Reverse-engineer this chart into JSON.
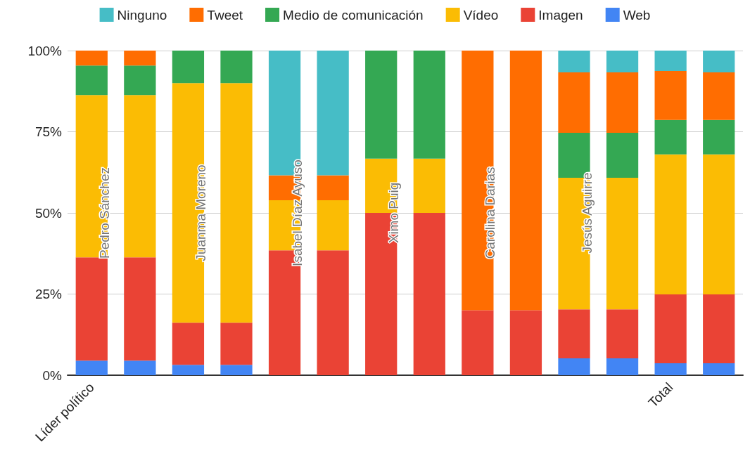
{
  "chart_data": {
    "type": "bar",
    "stacked": true,
    "categories": [
      "Líder político",
      null,
      null,
      null,
      null,
      null,
      null,
      null,
      null,
      null,
      null,
      null,
      "Total",
      null
    ],
    "series": [
      {
        "name": "Web",
        "color": "#4285f4",
        "values": [
          4.5,
          4.5,
          3.2,
          3.2,
          0,
          0,
          0,
          0,
          0,
          0,
          5.2,
          5.2,
          3.7,
          3.7
        ]
      },
      {
        "name": "Imagen",
        "color": "#ea4335",
        "values": [
          31.8,
          31.8,
          13,
          13,
          38.5,
          38.5,
          50,
          50,
          20,
          20,
          15.1,
          15.1,
          21.2,
          21.2
        ]
      },
      {
        "name": "Vídeo",
        "color": "#fbbc04",
        "values": [
          50,
          50,
          73.8,
          73.8,
          15.4,
          15.4,
          16.7,
          16.7,
          0,
          0,
          40.5,
          40.5,
          43.1,
          43.1
        ]
      },
      {
        "name": "Medio de comunicación",
        "color": "#34a853",
        "values": [
          9.1,
          9.1,
          10,
          10,
          0,
          0,
          33.3,
          33.3,
          0,
          0,
          13.9,
          13.9,
          10.6,
          10.6
        ]
      },
      {
        "name": "Tweet",
        "color": "#ff6d01",
        "values": [
          4.6,
          4.6,
          0,
          0,
          7.7,
          7.7,
          0,
          0,
          80,
          80,
          18.6,
          18.6,
          15.1,
          14.7
        ]
      },
      {
        "name": "Ninguno",
        "color": "#46bdc6",
        "values": [
          0,
          0,
          0,
          0,
          38.4,
          38.4,
          0,
          0,
          0,
          0,
          6.7,
          6.7,
          6.3,
          6.7
        ]
      }
    ],
    "ylim": [
      0,
      100
    ],
    "yticks": [
      {
        "value": 0,
        "label": "0%"
      },
      {
        "value": 25,
        "label": "25%"
      },
      {
        "value": 50,
        "label": "50%"
      },
      {
        "value": 75,
        "label": "75%"
      },
      {
        "value": 100,
        "label": "100%"
      }
    ],
    "grid": "y",
    "legend": "top",
    "annotations": [
      "Pedro Sánchez",
      "Juanma Moreno",
      "Isabel Díaz Ayuso",
      "Ximo Puig",
      "Carolina Darias",
      "Jesús Aguirre"
    ]
  }
}
